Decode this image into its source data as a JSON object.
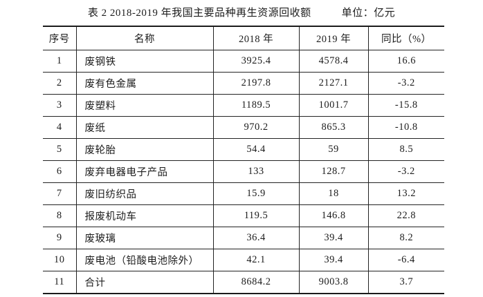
{
  "title": {
    "text": "表 2  2018-2019 年我国主要品种再生资源回收额",
    "unit": "单位：亿元"
  },
  "table": {
    "columns": [
      "序号",
      "名称",
      "2018 年",
      "2019 年",
      "同比（%）"
    ],
    "rows": [
      {
        "no": "1",
        "name": "废钢铁",
        "y2018": "3925.4",
        "y2019": "4578.4",
        "yoy": "16.6"
      },
      {
        "no": "2",
        "name": "废有色金属",
        "y2018": "2197.8",
        "y2019": "2127.1",
        "yoy": "-3.2"
      },
      {
        "no": "3",
        "name": "废塑料",
        "y2018": "1189.5",
        "y2019": "1001.7",
        "yoy": "-15.8"
      },
      {
        "no": "4",
        "name": "废纸",
        "y2018": "970.2",
        "y2019": "865.3",
        "yoy": "-10.8"
      },
      {
        "no": "5",
        "name": "废轮胎",
        "y2018": "54.4",
        "y2019": "59",
        "yoy": "8.5"
      },
      {
        "no": "6",
        "name": "废弃电器电子产品",
        "y2018": "133",
        "y2019": "128.7",
        "yoy": "-3.2"
      },
      {
        "no": "7",
        "name": "废旧纺织品",
        "y2018": "15.9",
        "y2019": "18",
        "yoy": "13.2"
      },
      {
        "no": "8",
        "name": "报废机动车",
        "y2018": "119.5",
        "y2019": "146.8",
        "yoy": "22.8"
      },
      {
        "no": "9",
        "name": "废玻璃",
        "y2018": "36.4",
        "y2019": "39.4",
        "yoy": "8.2"
      },
      {
        "no": "10",
        "name": "废电池（铅酸电池除外）",
        "y2018": "42.1",
        "y2019": "39.4",
        "yoy": "-6.4"
      },
      {
        "no": "11",
        "name": "合计",
        "y2018": "8684.2",
        "y2019": "9003.8",
        "yoy": "3.7"
      }
    ]
  }
}
